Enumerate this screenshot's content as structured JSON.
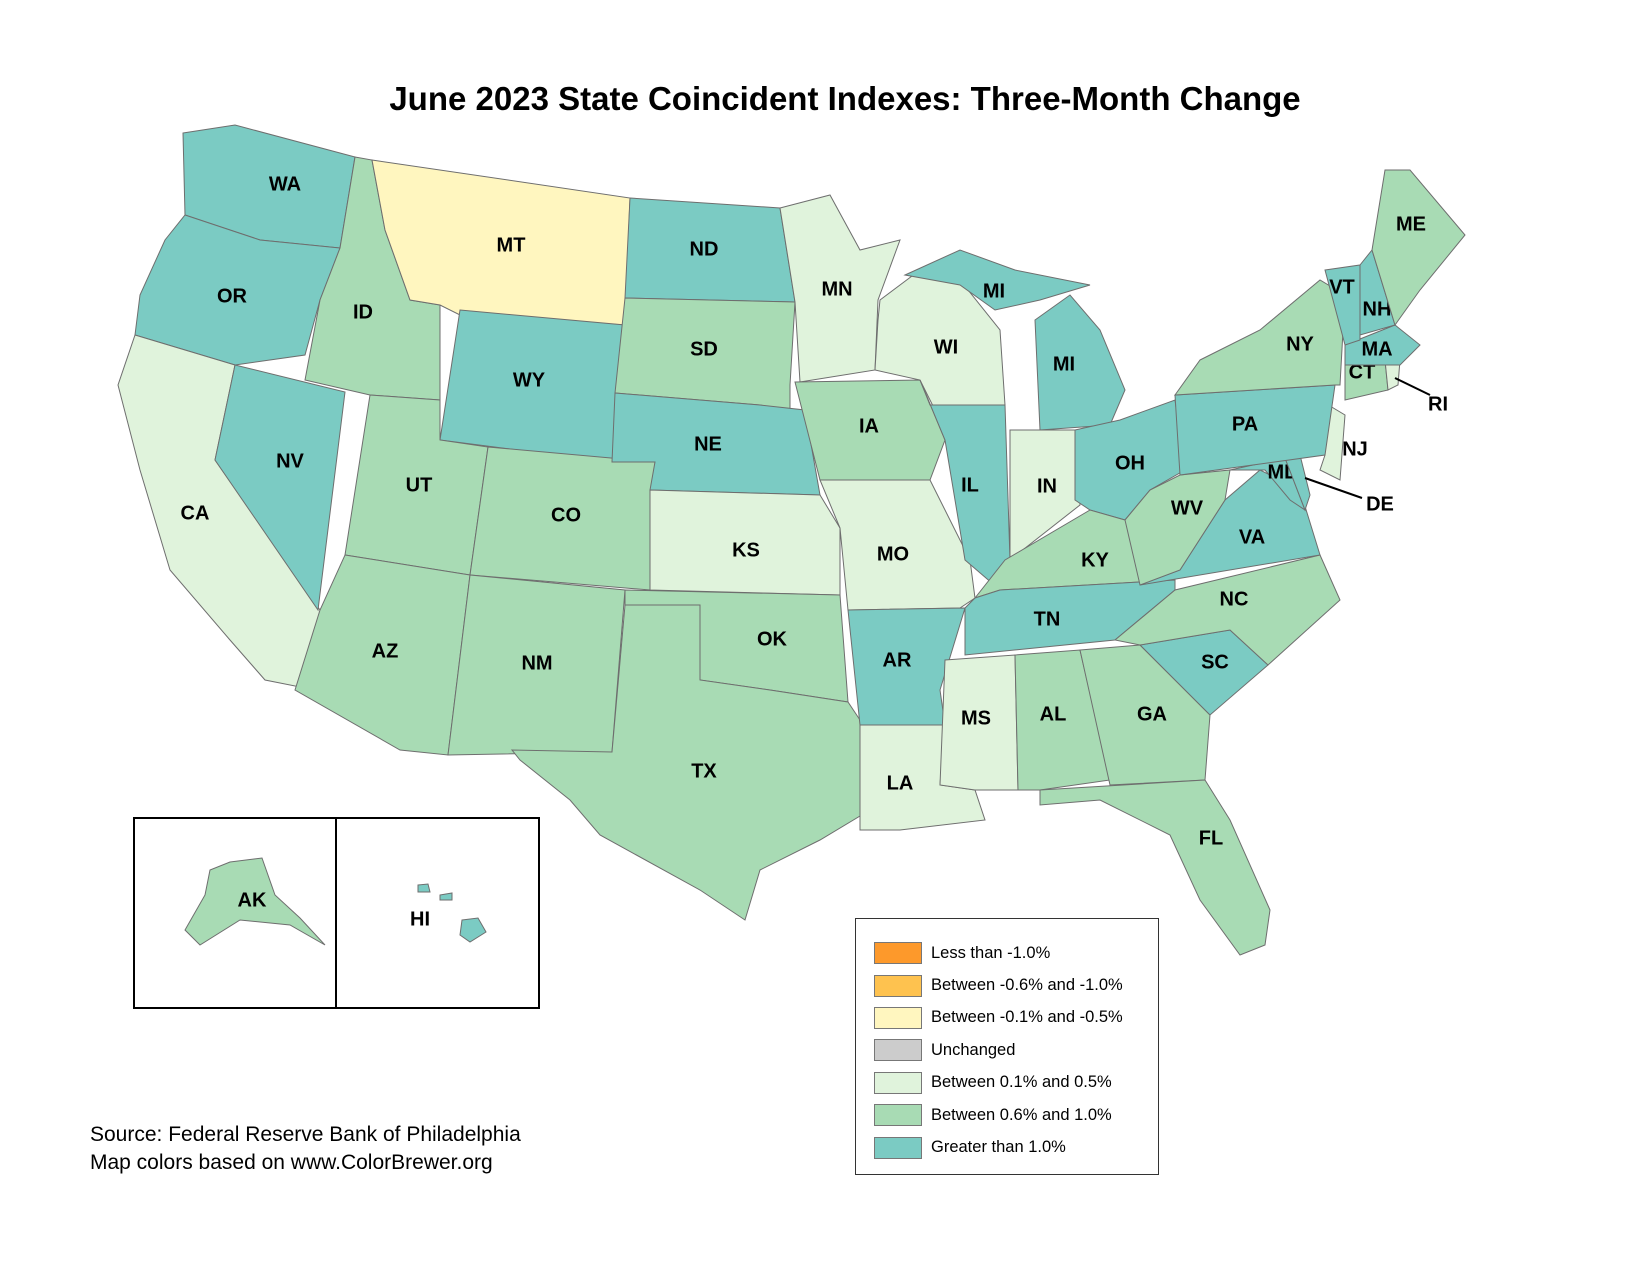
{
  "title": "June 2023 State Coincident Indexes: Three-Month Change",
  "legend": [
    {
      "key": "lt_m1",
      "label": "Less than -1.0%",
      "color": "#fd992b"
    },
    {
      "key": "m06_m10",
      "label": "Between -0.6% and -1.0%",
      "color": "#fec24f"
    },
    {
      "key": "m01_m05",
      "label": "Between -0.1% and -0.5%",
      "color": "#fff6bf"
    },
    {
      "key": "zero",
      "label": "Unchanged",
      "color": "#cccccc"
    },
    {
      "key": "p01_p05",
      "label": "Between 0.1% and 0.5%",
      "color": "#e0f3dc"
    },
    {
      "key": "p06_p10",
      "label": "Between 0.6% and 1.0%",
      "color": "#a8dbb4"
    },
    {
      "key": "gt_p1",
      "label": "Greater than 1.0%",
      "color": "#7bcbc3"
    }
  ],
  "states": [
    {
      "code": "WA",
      "cat": "gt_p1"
    },
    {
      "code": "OR",
      "cat": "gt_p1"
    },
    {
      "code": "CA",
      "cat": "p01_p05"
    },
    {
      "code": "NV",
      "cat": "gt_p1"
    },
    {
      "code": "ID",
      "cat": "p06_p10"
    },
    {
      "code": "MT",
      "cat": "m01_m05"
    },
    {
      "code": "WY",
      "cat": "gt_p1"
    },
    {
      "code": "UT",
      "cat": "p06_p10"
    },
    {
      "code": "CO",
      "cat": "p06_p10"
    },
    {
      "code": "AZ",
      "cat": "p06_p10"
    },
    {
      "code": "NM",
      "cat": "p06_p10"
    },
    {
      "code": "ND",
      "cat": "gt_p1"
    },
    {
      "code": "SD",
      "cat": "p06_p10"
    },
    {
      "code": "NE",
      "cat": "gt_p1"
    },
    {
      "code": "KS",
      "cat": "p01_p05"
    },
    {
      "code": "OK",
      "cat": "p06_p10"
    },
    {
      "code": "TX",
      "cat": "p06_p10"
    },
    {
      "code": "MN",
      "cat": "p01_p05"
    },
    {
      "code": "IA",
      "cat": "p06_p10"
    },
    {
      "code": "MO",
      "cat": "p01_p05"
    },
    {
      "code": "AR",
      "cat": "gt_p1"
    },
    {
      "code": "LA",
      "cat": "p01_p05"
    },
    {
      "code": "WI",
      "cat": "p01_p05"
    },
    {
      "code": "IL",
      "cat": "gt_p1"
    },
    {
      "code": "MI",
      "cat": "gt_p1"
    },
    {
      "code": "IN",
      "cat": "p01_p05"
    },
    {
      "code": "OH",
      "cat": "gt_p1"
    },
    {
      "code": "KY",
      "cat": "p06_p10"
    },
    {
      "code": "TN",
      "cat": "gt_p1"
    },
    {
      "code": "MS",
      "cat": "p01_p05"
    },
    {
      "code": "AL",
      "cat": "p06_p10"
    },
    {
      "code": "GA",
      "cat": "p06_p10"
    },
    {
      "code": "FL",
      "cat": "p06_p10"
    },
    {
      "code": "SC",
      "cat": "gt_p1"
    },
    {
      "code": "NC",
      "cat": "p06_p10"
    },
    {
      "code": "VA",
      "cat": "gt_p1"
    },
    {
      "code": "WV",
      "cat": "p06_p10"
    },
    {
      "code": "MD",
      "cat": "gt_p1"
    },
    {
      "code": "DE",
      "cat": "gt_p1"
    },
    {
      "code": "NJ",
      "cat": "p01_p05"
    },
    {
      "code": "PA",
      "cat": "gt_p1"
    },
    {
      "code": "NY",
      "cat": "p06_p10"
    },
    {
      "code": "CT",
      "cat": "p06_p10"
    },
    {
      "code": "RI",
      "cat": "p01_p05"
    },
    {
      "code": "MA",
      "cat": "gt_p1"
    },
    {
      "code": "VT",
      "cat": "gt_p1"
    },
    {
      "code": "NH",
      "cat": "gt_p1"
    },
    {
      "code": "ME",
      "cat": "p06_p10"
    },
    {
      "code": "AK",
      "cat": "p06_p10"
    },
    {
      "code": "HI",
      "cat": "gt_p1"
    }
  ],
  "source": {
    "line1": "Source: Federal Reserve Bank of Philadelphia",
    "line2": "Map colors based on www.ColorBrewer.org"
  }
}
